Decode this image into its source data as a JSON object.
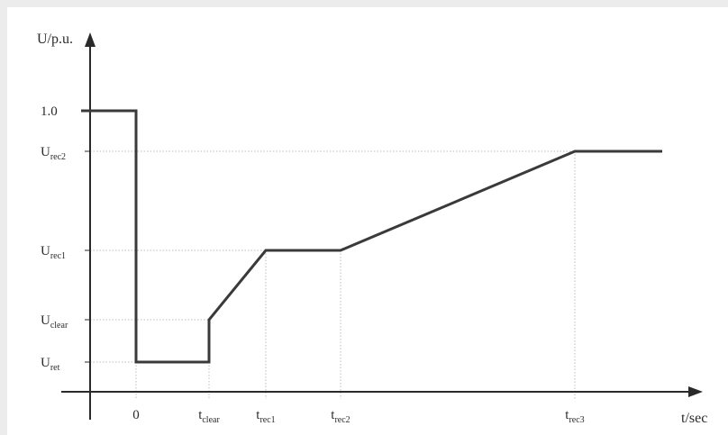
{
  "chart_data": {
    "type": "line",
    "title": "",
    "ylabel": "U/p.u.",
    "xlabel": "t/sec",
    "x_ticks": [
      {
        "key": "t0",
        "main": "0",
        "sub": ""
      },
      {
        "key": "tclear",
        "main": "t",
        "sub": "clear"
      },
      {
        "key": "trec1",
        "main": "t",
        "sub": "rec1"
      },
      {
        "key": "trec2",
        "main": "t",
        "sub": "rec2"
      },
      {
        "key": "trec3",
        "main": "t",
        "sub": "rec3"
      }
    ],
    "y_ticks": [
      {
        "key": "u1",
        "main": "1.0",
        "sub": ""
      },
      {
        "key": "urec2",
        "main": "U",
        "sub": "rec2"
      },
      {
        "key": "urec1",
        "main": "U",
        "sub": "rec1"
      },
      {
        "key": "uclear",
        "main": "U",
        "sub": "clear"
      },
      {
        "key": "uret",
        "main": "U",
        "sub": "ret"
      }
    ],
    "series": [
      {
        "points": [
          [
            "pre",
            "u1"
          ],
          [
            "t0",
            "u1"
          ],
          [
            "t0",
            "uret"
          ],
          [
            "tclear",
            "uret"
          ],
          [
            "tclear",
            "uclear"
          ],
          [
            "trec1",
            "urec1"
          ],
          [
            "trec2",
            "urec1"
          ],
          [
            "trec3",
            "urec2"
          ],
          [
            "post",
            "urec2"
          ]
        ]
      }
    ],
    "grid": "dotted reference lines at each labeled level and time",
    "line_color": "#3a3a3a",
    "axis_color": "#2a2a2a",
    "grid_color": "#bdbdbd"
  }
}
